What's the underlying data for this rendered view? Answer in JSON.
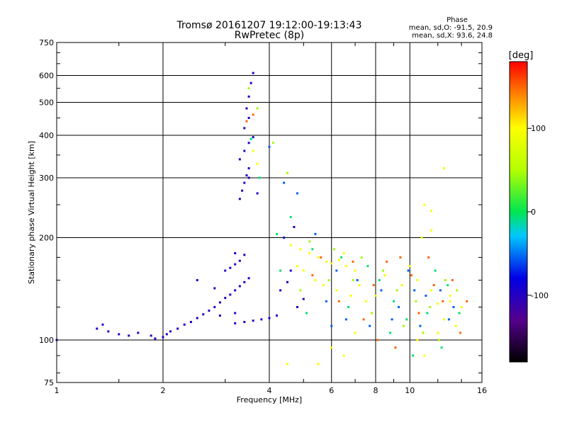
{
  "header": {
    "title_line1": "Tromsø 20161207 19:12:00-19:13:43",
    "title_line2": "RwPretec (8p)",
    "phase_title": "Phase",
    "phase_o": "mean, sd,O: -91.5, 20.9",
    "phase_x": "mean, sd,X:  93.6, 24.8"
  },
  "colorbar": {
    "label": "[deg]",
    "min": -180,
    "max": 180,
    "ticks": [
      {
        "value": 100,
        "label": "100"
      },
      {
        "value": 0,
        "label": "0"
      },
      {
        "value": -100,
        "label": "-100"
      }
    ]
  },
  "chart_data": {
    "type": "scatter",
    "title": "Tromsø 20161207 19:12:00-19:13:43",
    "subtitle": "RwPretec (8p)",
    "xlabel": "Frequency [MHz]",
    "ylabel": "Stationary phase Virtual Height [km]",
    "xscale": "log",
    "yscale": "log",
    "xlim": [
      1,
      16
    ],
    "ylim": [
      75,
      750
    ],
    "grid": true,
    "xticks": [
      {
        "value": 1,
        "label": "1"
      },
      {
        "value": 2,
        "label": "2"
      },
      {
        "value": 4,
        "label": "4"
      },
      {
        "value": 6,
        "label": "6"
      },
      {
        "value": 8,
        "label": "8"
      },
      {
        "value": 10,
        "label": "10"
      },
      {
        "value": 16,
        "label": "16"
      }
    ],
    "yticks": [
      {
        "value": 75,
        "label": "75"
      },
      {
        "value": 100,
        "label": "100"
      },
      {
        "value": 200,
        "label": "200"
      },
      {
        "value": 300,
        "label": "300"
      },
      {
        "value": 400,
        "label": "400"
      },
      {
        "value": 500,
        "label": "500"
      },
      {
        "value": 600,
        "label": "600"
      },
      {
        "value": 750,
        "label": "750"
      }
    ],
    "color_variable": "phase [deg]",
    "series": [
      {
        "points": [
          [
            1.0,
            100
          ],
          [
            1.3,
            108
          ],
          [
            1.35,
            111
          ],
          [
            1.4,
            106
          ],
          [
            1.5,
            104
          ],
          [
            1.6,
            103
          ],
          [
            1.7,
            105
          ],
          [
            1.85,
            103
          ],
          [
            1.9,
            101
          ],
          [
            2.0,
            102
          ],
          [
            2.05,
            104
          ],
          [
            2.1,
            106
          ],
          [
            2.2,
            108
          ],
          [
            2.3,
            111
          ],
          [
            2.4,
            113
          ],
          [
            2.5,
            116
          ],
          [
            2.6,
            119
          ],
          [
            2.7,
            122
          ],
          [
            2.8,
            125
          ],
          [
            2.9,
            129
          ],
          [
            3.0,
            133
          ],
          [
            3.1,
            136
          ],
          [
            3.2,
            140
          ],
          [
            3.3,
            144
          ],
          [
            3.4,
            148
          ],
          [
            3.5,
            152
          ],
          [
            3.2,
            112
          ],
          [
            3.4,
            113
          ],
          [
            3.6,
            114
          ],
          [
            3.8,
            115
          ],
          [
            4.0,
            116
          ],
          [
            4.2,
            118
          ],
          [
            3.0,
            160
          ],
          [
            3.1,
            163
          ],
          [
            3.2,
            167
          ],
          [
            3.3,
            171
          ],
          [
            3.2,
            180
          ],
          [
            3.4,
            178
          ],
          [
            3.3,
            260
          ],
          [
            3.35,
            275
          ],
          [
            3.4,
            290
          ],
          [
            3.45,
            305
          ],
          [
            3.5,
            320
          ],
          [
            3.3,
            340
          ],
          [
            3.4,
            360
          ],
          [
            3.5,
            380
          ],
          [
            3.4,
            420
          ],
          [
            3.5,
            450
          ],
          [
            3.45,
            480
          ],
          [
            3.5,
            520
          ],
          [
            3.55,
            570
          ],
          [
            3.6,
            610
          ],
          [
            4.3,
            140
          ],
          [
            4.5,
            148
          ],
          [
            4.8,
            125
          ],
          [
            4.6,
            160
          ],
          [
            5.0,
            132
          ],
          [
            2.5,
            150
          ],
          [
            2.8,
            142
          ],
          [
            3.6,
            395
          ],
          [
            3.5,
            300
          ],
          [
            3.7,
            270
          ],
          [
            3.2,
            120
          ],
          [
            2.9,
            118
          ],
          [
            4.4,
            200
          ],
          [
            4.7,
            215
          ]
        ],
        "phase": -95
      },
      {
        "points": [
          [
            5.2,
            180
          ],
          [
            5.5,
            175
          ],
          [
            5.8,
            170
          ],
          [
            6.0,
            168
          ],
          [
            6.3,
            172
          ],
          [
            6.6,
            165
          ],
          [
            7.0,
            160
          ],
          [
            4.8,
            165
          ],
          [
            5.0,
            160
          ],
          [
            5.4,
            150
          ],
          [
            5.7,
            145
          ],
          [
            6.2,
            140
          ],
          [
            6.8,
            135
          ],
          [
            7.5,
            130
          ],
          [
            4.6,
            190
          ],
          [
            4.9,
            185
          ],
          [
            6.5,
            180
          ],
          [
            10.0,
            165
          ],
          [
            10.5,
            150
          ],
          [
            11.5,
            140
          ],
          [
            12.0,
            128
          ],
          [
            13.0,
            135
          ],
          [
            14.0,
            125
          ],
          [
            12.5,
            115
          ],
          [
            13.5,
            110
          ],
          [
            11.0,
            250
          ],
          [
            11.5,
            210
          ],
          [
            10.8,
            200
          ],
          [
            3.6,
            360
          ],
          [
            3.7,
            330
          ],
          [
            6.0,
            95
          ],
          [
            6.5,
            90
          ],
          [
            7.0,
            105
          ],
          [
            5.5,
            85
          ],
          [
            4.5,
            85
          ],
          [
            10.5,
            100
          ],
          [
            11.0,
            90
          ],
          [
            12.0,
            105
          ],
          [
            13.0,
            130
          ],
          [
            9.5,
            145
          ],
          [
            8.5,
            155
          ],
          [
            8.0,
            135
          ],
          [
            7.2,
            145
          ],
          [
            12.5,
            320
          ],
          [
            11.5,
            240
          ]
        ],
        "phase": 95
      },
      {
        "points": [
          [
            3.55,
            390
          ],
          [
            3.75,
            300
          ],
          [
            4.2,
            205
          ],
          [
            4.6,
            230
          ],
          [
            5.3,
            185
          ],
          [
            6.4,
            175
          ],
          [
            7.6,
            165
          ],
          [
            8.2,
            150
          ],
          [
            9.0,
            130
          ],
          [
            9.8,
            115
          ],
          [
            11.8,
            160
          ],
          [
            12.8,
            145
          ],
          [
            13.8,
            120
          ],
          [
            4.3,
            160
          ],
          [
            5.1,
            120
          ],
          [
            6.7,
            125
          ],
          [
            8.8,
            105
          ],
          [
            10.2,
            90
          ],
          [
            11.2,
            120
          ],
          [
            12.3,
            95
          ]
        ],
        "phase": -5
      },
      {
        "points": [
          [
            3.5,
            550
          ],
          [
            3.7,
            480
          ],
          [
            4.1,
            380
          ],
          [
            4.5,
            310
          ],
          [
            5.2,
            195
          ],
          [
            6.1,
            185
          ],
          [
            7.3,
            175
          ],
          [
            8.4,
            160
          ],
          [
            9.2,
            140
          ],
          [
            10.4,
            130
          ],
          [
            11.4,
            125
          ],
          [
            12.6,
            150
          ],
          [
            13.6,
            140
          ],
          [
            4.9,
            140
          ],
          [
            5.9,
            150
          ],
          [
            6.9,
            150
          ],
          [
            7.8,
            120
          ],
          [
            9.6,
            110
          ],
          [
            10.9,
            105
          ],
          [
            12.1,
            100
          ]
        ],
        "phase": 45
      },
      {
        "points": [
          [
            3.45,
            440
          ],
          [
            3.6,
            460
          ],
          [
            5.6,
            175
          ],
          [
            6.9,
            170
          ],
          [
            7.9,
            145
          ],
          [
            8.6,
            170
          ],
          [
            9.4,
            175
          ],
          [
            10.1,
            155
          ],
          [
            11.7,
            145
          ],
          [
            13.2,
            150
          ],
          [
            14.5,
            130
          ],
          [
            5.3,
            155
          ],
          [
            6.3,
            130
          ],
          [
            7.4,
            115
          ],
          [
            8.1,
            100
          ],
          [
            9.1,
            95
          ],
          [
            10.6,
            120
          ],
          [
            12.4,
            130
          ],
          [
            13.9,
            105
          ],
          [
            11.3,
            175
          ]
        ],
        "phase": 150
      },
      {
        "points": [
          [
            4.0,
            370
          ],
          [
            4.4,
            290
          ],
          [
            4.8,
            270
          ],
          [
            5.4,
            205
          ],
          [
            6.2,
            160
          ],
          [
            7.1,
            150
          ],
          [
            8.3,
            140
          ],
          [
            9.3,
            125
          ],
          [
            10.3,
            140
          ],
          [
            11.1,
            135
          ],
          [
            12.2,
            140
          ],
          [
            13.3,
            125
          ],
          [
            6.0,
            110
          ],
          [
            6.6,
            115
          ],
          [
            7.7,
            110
          ],
          [
            8.9,
            115
          ],
          [
            10.7,
            110
          ],
          [
            12.9,
            115
          ],
          [
            9.9,
            160
          ],
          [
            5.8,
            130
          ]
        ],
        "phase": -55
      }
    ]
  }
}
